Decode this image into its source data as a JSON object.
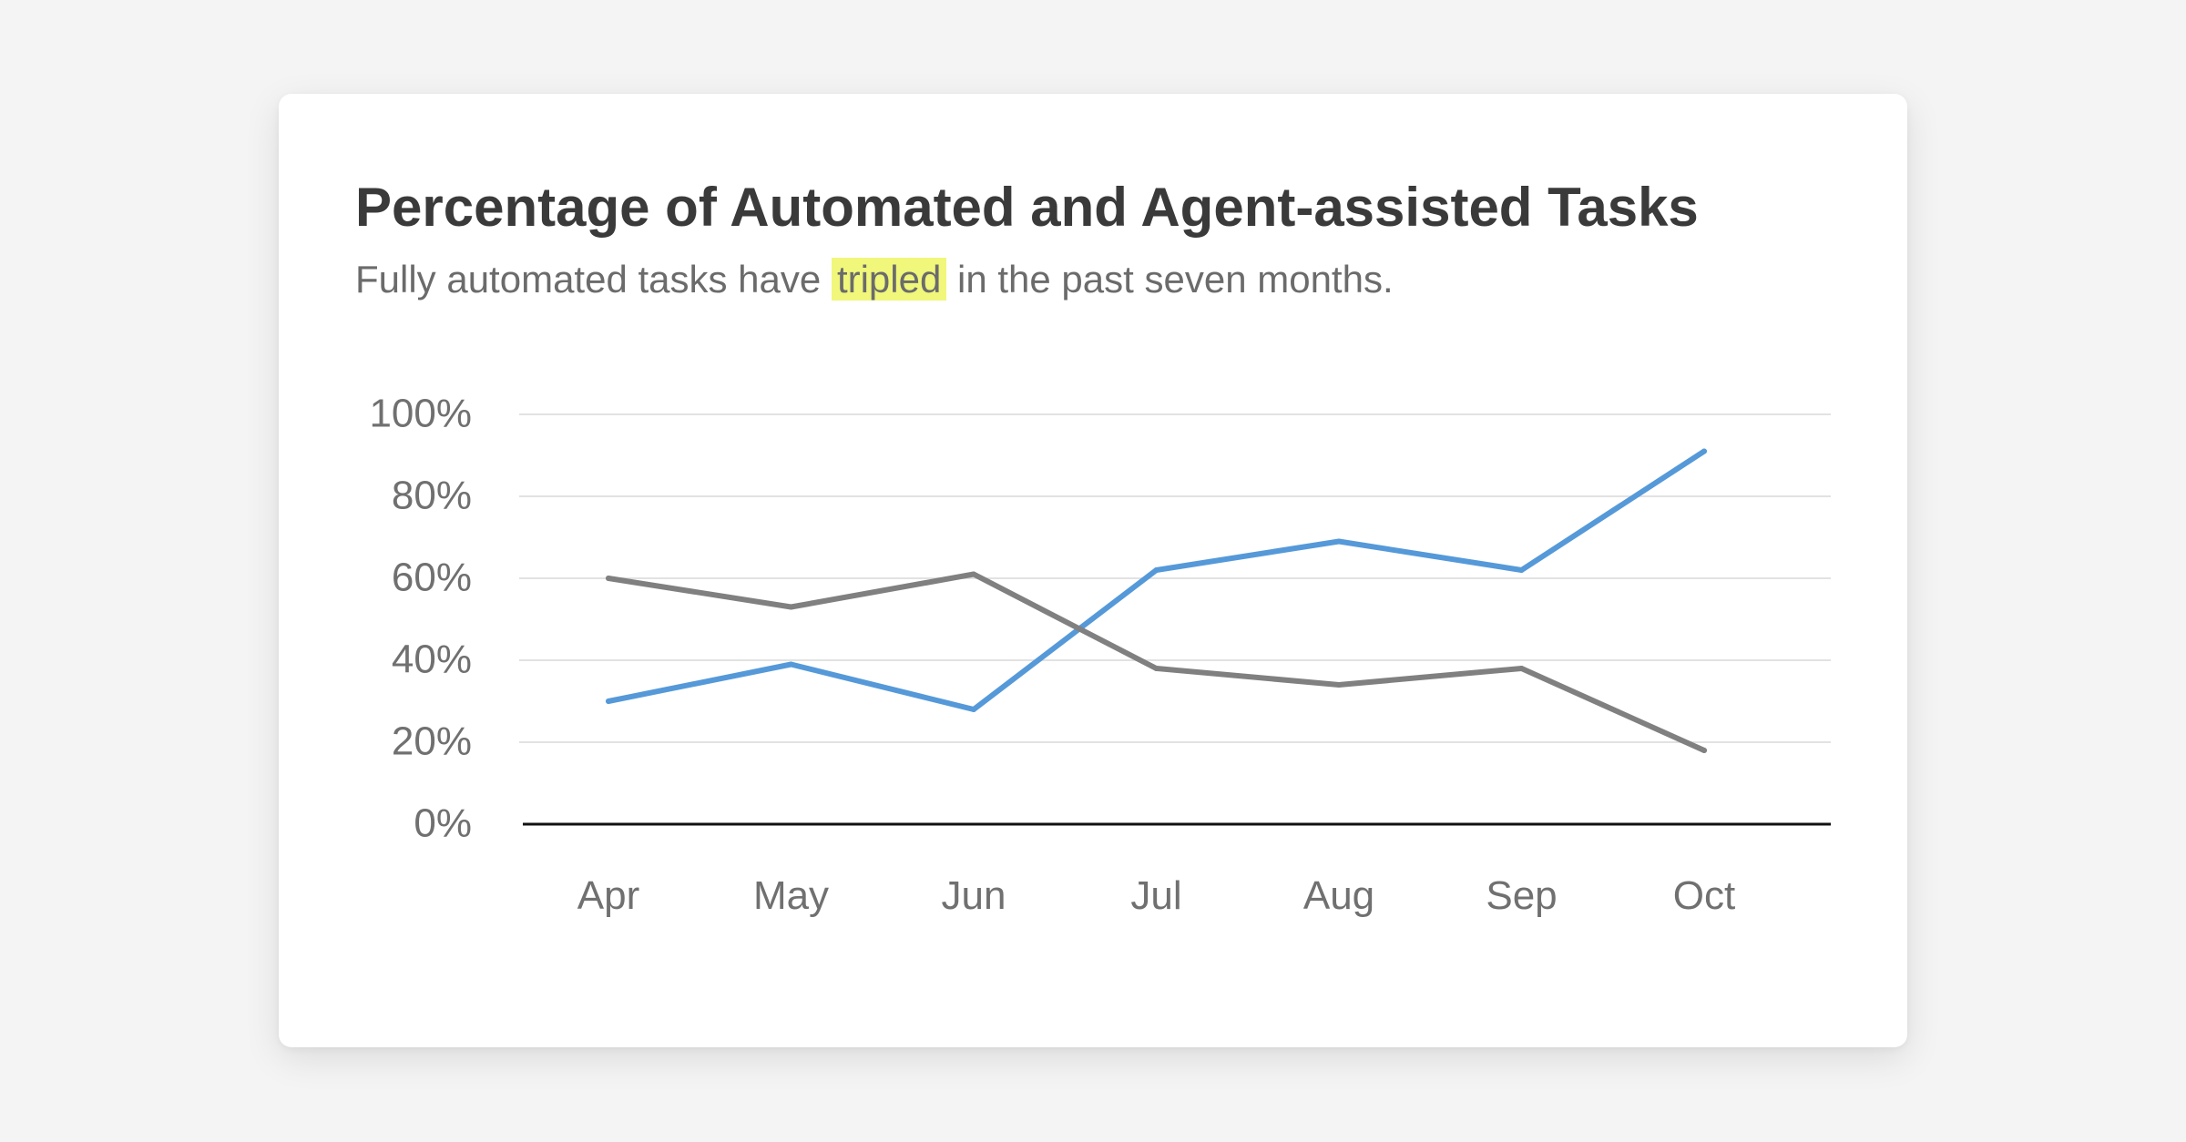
{
  "card": {
    "title": "Percentage of Automated and Agent-assisted Tasks",
    "subtitle_before": "Fully automated tasks have",
    "subtitle_highlight": "tripled",
    "subtitle_after": "in the past seven months."
  },
  "colors": {
    "automated": "#5599d9",
    "agent_assisted": "#808080",
    "highlight": "#f0f77a",
    "gridline": "#e2e2e2",
    "baseline": "#111111"
  },
  "chart_data": {
    "type": "line",
    "title": "Percentage of Automated and Agent-assisted Tasks",
    "subtitle": "Fully automated tasks have tripled in the past seven months.",
    "categories": [
      "Apr",
      "May",
      "Jun",
      "Jul",
      "Aug",
      "Sep",
      "Oct"
    ],
    "series": [
      {
        "values": [
          30,
          39,
          28,
          62,
          69,
          62,
          91
        ]
      },
      {
        "values": [
          60,
          53,
          61,
          38,
          34,
          38,
          18
        ]
      }
    ],
    "ylim": [
      0,
      100
    ],
    "yticks": [
      0,
      20,
      40,
      60,
      80,
      100
    ],
    "ytick_labels": [
      "0%",
      "20%",
      "40%",
      "60%",
      "80%",
      "100%"
    ],
    "grid": true,
    "legend": "none"
  }
}
